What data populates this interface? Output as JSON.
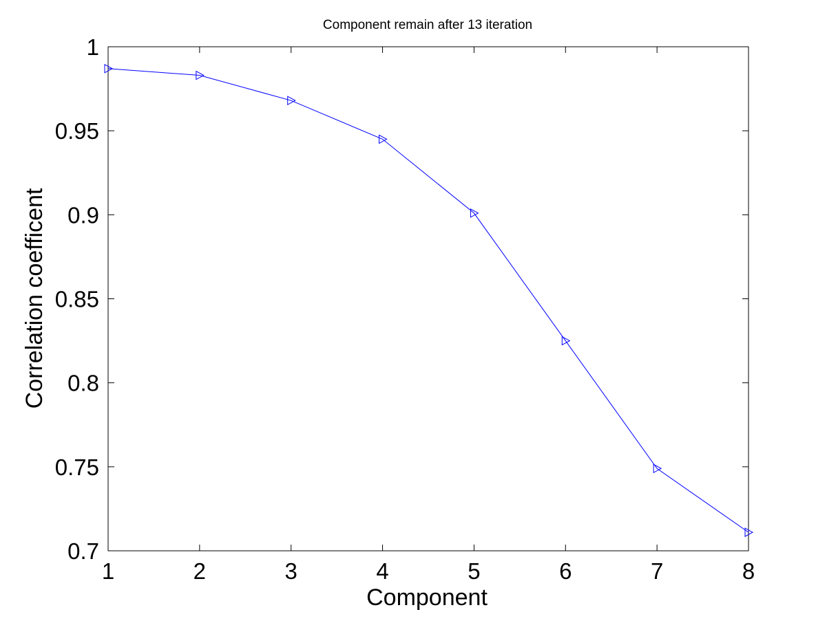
{
  "chart_data": {
    "type": "line",
    "title": "Component remain after 13 iteration",
    "xlabel": "Component",
    "ylabel": "Correlation coefficent",
    "x": [
      1,
      2,
      3,
      4,
      5,
      6,
      7,
      8
    ],
    "xlim": [
      1,
      8
    ],
    "ylim": [
      0.7,
      1
    ],
    "x_ticks": [
      1,
      2,
      3,
      4,
      5,
      6,
      7,
      8
    ],
    "x_tick_labels": [
      "1",
      "2",
      "3",
      "4",
      "5",
      "6",
      "7",
      "8"
    ],
    "y_ticks": [
      0.7,
      0.75,
      0.8,
      0.85,
      0.9,
      0.95,
      1
    ],
    "y_tick_labels": [
      "0.7",
      "0.75",
      "0.8",
      "0.85",
      "0.9",
      "0.95",
      "1"
    ],
    "grid": false,
    "legend": "none",
    "series": [
      {
        "values": [
          0.987,
          0.983,
          0.968,
          0.945,
          0.901,
          0.825,
          0.749,
          0.711
        ],
        "color": "#0000ff",
        "marker": "triangle-right"
      }
    ]
  }
}
